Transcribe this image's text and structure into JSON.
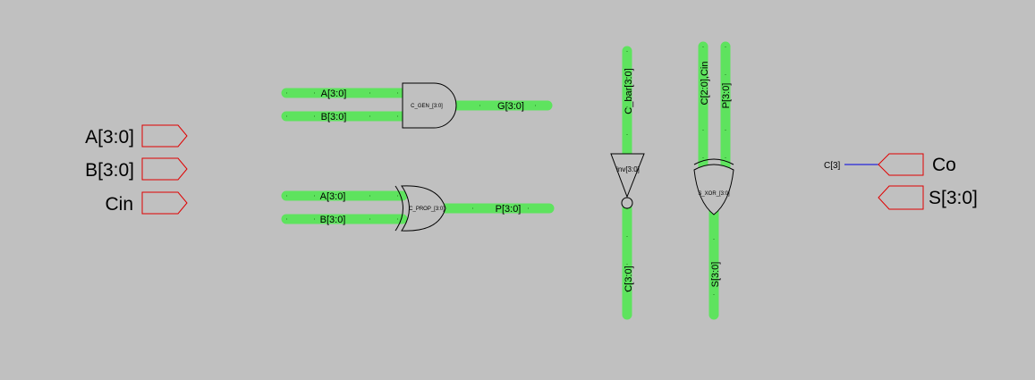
{
  "inputs": {
    "a": "A[3:0]",
    "b": "B[3:0]",
    "cin": "Cin"
  },
  "outputs": {
    "co": "Co",
    "s": "S[3:0]",
    "co_wire": "C[3]"
  },
  "gen_block": {
    "in_a": "A[3:0]",
    "in_b": "B[3:0]",
    "gate": "C_GEN_[3:0]",
    "out": "G[3:0]"
  },
  "prop_block": {
    "in_a": "A[3:0]",
    "in_b": "B[3:0]",
    "gate": "C_PROP_[3:0]",
    "out": "P[3:0]"
  },
  "inverter": {
    "in": "C_bar[3:0]",
    "gate": "inv[3:0]",
    "out": "C[3:0]"
  },
  "sum_xor": {
    "in_c": "C[2:0],Cin",
    "in_p": "P[3:0]",
    "gate": "S_XOR_[3:0]",
    "out": "S[3:0]"
  },
  "colors": {
    "background": "#c0c0c0",
    "bus": "#5ee35e",
    "port": "#e00000",
    "wire": "#0000e0"
  }
}
